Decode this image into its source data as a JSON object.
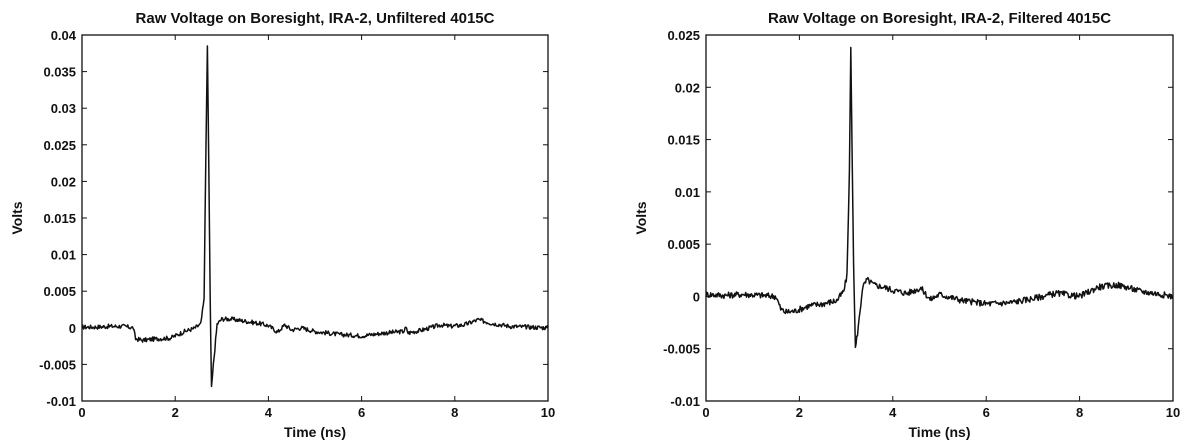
{
  "chart_data": [
    {
      "type": "line",
      "title": "Raw Voltage on Boresight, IRA-2, Unfiltered 4015C",
      "xlabel": "Time (ns)",
      "ylabel": "Volts",
      "xlim": [
        0,
        10
      ],
      "ylim": [
        -0.01,
        0.04
      ],
      "xticks": [
        "0",
        "2",
        "4",
        "6",
        "8",
        "10"
      ],
      "yticks": [
        "-0.01",
        "-0.005",
        "0",
        "0.005",
        "0.01",
        "0.015",
        "0.02",
        "0.025",
        "0.03",
        "0.035",
        "0.04"
      ],
      "grid": false,
      "color": "#111111",
      "series": [
        {
          "x": [
            0,
            0.3,
            0.6,
            0.9,
            1.1,
            1.15,
            1.3,
            1.6,
            1.9,
            2.2,
            2.4,
            2.55,
            2.62,
            2.66,
            2.69,
            2.72,
            2.75,
            2.78,
            2.82,
            2.9,
            3.0,
            3.2,
            3.5,
            3.8,
            4.0,
            4.2,
            4.35,
            4.5,
            4.7,
            5.0,
            5.5,
            6.0,
            6.5,
            6.9,
            6.95,
            7.0,
            7.3,
            7.7,
            7.9,
            8.2,
            8.5,
            8.8,
            9.2,
            9.6,
            10.0
          ],
          "y": [
            0.0001,
            0.0001,
            0.0002,
            0.0002,
            0.0,
            -0.0015,
            -0.0017,
            -0.0015,
            -0.0014,
            -0.0005,
            -0.0001,
            0.0005,
            0.004,
            0.025,
            0.0385,
            0.022,
            0.004,
            -0.008,
            -0.005,
            0.0005,
            0.0012,
            0.0012,
            0.0009,
            0.0006,
            0.0003,
            -0.0006,
            0.0004,
            -0.0003,
            0.0,
            -0.0005,
            -0.0009,
            -0.0011,
            -0.0007,
            -0.0005,
            0.0,
            -0.0007,
            -0.0003,
            0.0004,
            0.0002,
            0.0004,
            0.0011,
            0.0006,
            0.0002,
            0.0001,
            0.0
          ]
        }
      ]
    },
    {
      "type": "line",
      "title": "Raw Voltage on Boresight, IRA-2, Filtered 4015C",
      "xlabel": "Time (ns)",
      "ylabel": "Volts",
      "xlim": [
        0,
        10
      ],
      "ylim": [
        -0.01,
        0.025
      ],
      "xticks": [
        "0",
        "2",
        "4",
        "6",
        "8",
        "10"
      ],
      "yticks": [
        "-0.01",
        "-0.005",
        "0",
        "0.005",
        "0.01",
        "0.015",
        "0.02",
        "0.025"
      ],
      "grid": false,
      "color": "#111111",
      "series": [
        {
          "x": [
            0,
            0.4,
            0.8,
            1.2,
            1.5,
            1.6,
            1.7,
            1.9,
            2.2,
            2.5,
            2.8,
            2.95,
            3.02,
            3.07,
            3.1,
            3.13,
            3.16,
            3.2,
            3.26,
            3.35,
            3.45,
            3.6,
            3.8,
            4.0,
            4.3,
            4.6,
            4.8,
            5.0,
            5.5,
            6.0,
            6.5,
            7.0,
            7.5,
            8.0,
            8.4,
            8.8,
            9.0,
            9.3,
            9.6,
            10.0
          ],
          "y": [
            0.0002,
            0.0001,
            0.0002,
            0.0001,
            0.0,
            -0.0012,
            -0.0015,
            -0.0014,
            -0.0009,
            -0.0007,
            -0.0004,
            0.0005,
            0.002,
            0.012,
            0.0238,
            0.013,
            0.003,
            -0.005,
            -0.003,
            0.0008,
            0.0016,
            0.0011,
            0.0009,
            0.0006,
            0.0003,
            0.0008,
            -0.0003,
            0.0002,
            -0.0004,
            -0.0007,
            -0.0006,
            -0.0002,
            0.0003,
            0.0,
            0.0009,
            0.0011,
            0.0009,
            0.0005,
            0.0003,
            0.0
          ]
        }
      ]
    }
  ]
}
